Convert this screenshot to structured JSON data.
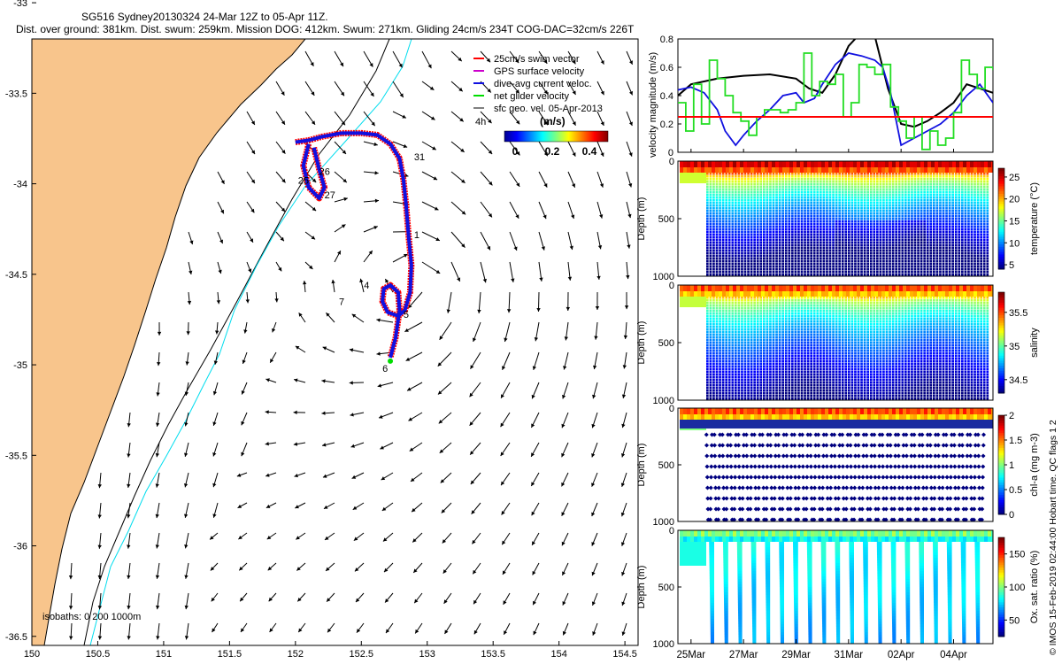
{
  "header": {
    "title_line1": "SG516 Sydney20130324 24-Mar 12Z to 05-Apr 11Z.",
    "title_line2": "Dist. over ground: 381km. Dist. swum: 259km. Mission DOG: 412km. Swum: 271km. Gliding 24cm/s 234T COG-DAC=32cm/s 226T"
  },
  "footer_note": "© IMOS 15-Feb-2019 02:44:00 Hobart time. QC flags 1  2",
  "colors": {
    "land": "#F8C58C",
    "swim_vector": "#FF0000",
    "current": "#1010E0",
    "net_velocity": "#00DD00",
    "isobath_200": "#00DDEE",
    "isobath_1000": "#000000",
    "threshold_line": "#FF0000",
    "gps_surface": "#CC00CC"
  },
  "chart_data": [
    {
      "type": "map",
      "name": "glider track map",
      "xlim": [
        150,
        154.6
      ],
      "ylim": [
        -36.55,
        -33.2
      ],
      "x_ticks": [
        "150",
        "150.5",
        "151",
        "151.5",
        "152",
        "152.5",
        "153",
        "153.5",
        "154",
        "154.5"
      ],
      "y_ticks": [
        "-33",
        "-33.5",
        "-34",
        "-34.5",
        "-35",
        "-35.5",
        "-36",
        "-36.5"
      ],
      "isobaths_note": "isobaths: 0   200  1000m",
      "legend": {
        "items": [
          "25cm/s swim vector",
          "GPS surface velocity",
          "dive-avg current veloc.",
          "net glider velocity",
          "sfc geo. vel. 05-Apr-2013"
        ],
        "extra": "4h"
      },
      "colorbar": {
        "label": "(m/s)",
        "ticks": [
          "0",
          "0.2",
          "0.4"
        ],
        "range": [
          0,
          0.5
        ]
      },
      "day_labels": [
        {
          "text": "25",
          "lon": 152.02,
          "lat": -34.0
        },
        {
          "text": "26",
          "lon": 152.18,
          "lat": -33.95
        },
        {
          "text": "27",
          "lon": 152.22,
          "lat": -34.08
        },
        {
          "text": "31",
          "lon": 152.9,
          "lat": -33.87
        },
        {
          "text": "1",
          "lon": 152.9,
          "lat": -34.3
        },
        {
          "text": "4",
          "lon": 152.52,
          "lat": -34.58
        },
        {
          "text": "7",
          "lon": 152.33,
          "lat": -34.67
        },
        {
          "text": "5",
          "lon": 152.82,
          "lat": -34.74
        },
        {
          "text": "6",
          "lon": 152.66,
          "lat": -35.04
        }
      ],
      "track": [
        [
          152.0,
          -33.77
        ],
        [
          152.1,
          -33.76
        ],
        [
          152.2,
          -33.74
        ],
        [
          152.35,
          -33.72
        ],
        [
          152.5,
          -33.72
        ],
        [
          152.62,
          -33.73
        ],
        [
          152.72,
          -33.78
        ],
        [
          152.79,
          -33.86
        ],
        [
          152.82,
          -33.98
        ],
        [
          152.84,
          -34.12
        ],
        [
          152.86,
          -34.3
        ],
        [
          152.88,
          -34.45
        ],
        [
          152.87,
          -34.6
        ],
        [
          152.83,
          -34.7
        ],
        [
          152.78,
          -34.73
        ],
        [
          152.7,
          -34.71
        ],
        [
          152.66,
          -34.65
        ],
        [
          152.67,
          -34.58
        ],
        [
          152.72,
          -34.56
        ],
        [
          152.78,
          -34.6
        ],
        [
          152.79,
          -34.7
        ],
        [
          152.76,
          -34.85
        ],
        [
          152.72,
          -34.96
        ]
      ],
      "track_loop": [
        [
          152.1,
          -33.78
        ],
        [
          152.06,
          -33.9
        ],
        [
          152.1,
          -34.02
        ],
        [
          152.18,
          -34.08
        ],
        [
          152.22,
          -34.02
        ],
        [
          152.18,
          -33.92
        ],
        [
          152.14,
          -33.8
        ]
      ]
    },
    {
      "type": "line",
      "name": "velocity magnitude",
      "ylabel": "velocity magnitude (m/s)",
      "ylim": [
        0,
        0.8
      ],
      "y_ticks": [
        "0",
        "0.2",
        "0.4",
        "0.6",
        "0.8"
      ],
      "threshold": 0.25,
      "t_range": [
        24.5,
        36.5
      ],
      "series": [
        {
          "name": "sfc geostrophic",
          "color": "#000000",
          "t": [
            24.5,
            25.0,
            26.0,
            27.0,
            28.0,
            29.0,
            29.5,
            30.0,
            30.5,
            31.0,
            31.5,
            32.0,
            32.5,
            33.0,
            33.5,
            34.0,
            34.5,
            35.0,
            35.5,
            36.0,
            36.5
          ],
          "v": [
            0.4,
            0.48,
            0.52,
            0.54,
            0.55,
            0.52,
            0.45,
            0.42,
            0.55,
            0.75,
            0.85,
            0.82,
            0.45,
            0.2,
            0.18,
            0.22,
            0.28,
            0.35,
            0.48,
            0.45,
            0.42
          ]
        },
        {
          "name": "dive-avg current",
          "color": "#1010E0",
          "t": [
            24.5,
            25.0,
            25.5,
            26.0,
            26.3,
            26.7,
            27.0,
            27.5,
            28.0,
            28.5,
            29.0,
            29.3,
            29.7,
            30.0,
            30.5,
            31.0,
            31.5,
            32.0,
            32.3,
            32.6,
            33.0,
            33.5,
            34.0,
            34.5,
            35.0,
            35.5,
            36.0,
            36.5
          ],
          "v": [
            0.44,
            0.46,
            0.42,
            0.3,
            0.15,
            0.05,
            0.12,
            0.22,
            0.3,
            0.4,
            0.42,
            0.35,
            0.38,
            0.48,
            0.62,
            0.7,
            0.68,
            0.65,
            0.6,
            0.42,
            0.05,
            0.1,
            0.15,
            0.2,
            0.28,
            0.4,
            0.48,
            0.35
          ]
        },
        {
          "name": "net glider velocity",
          "color": "#22DD22",
          "t": [
            24.5,
            24.8,
            25.1,
            25.4,
            25.7,
            26.0,
            26.3,
            26.6,
            26.9,
            27.2,
            27.5,
            27.8,
            28.1,
            28.4,
            28.7,
            29.0,
            29.3,
            29.6,
            29.9,
            30.2,
            30.5,
            30.8,
            31.1,
            31.4,
            31.7,
            32.0,
            32.3,
            32.6,
            32.9,
            33.2,
            33.5,
            33.8,
            34.1,
            34.4,
            34.7,
            35.0,
            35.3,
            35.6,
            35.9,
            36.2,
            36.5
          ],
          "v": [
            0.35,
            0.15,
            0.48,
            0.2,
            0.65,
            0.52,
            0.4,
            0.28,
            0.22,
            0.12,
            0.25,
            0.3,
            0.3,
            0.28,
            0.3,
            0.35,
            0.7,
            0.4,
            0.5,
            0.48,
            0.55,
            0.25,
            0.35,
            0.62,
            0.6,
            0.55,
            0.62,
            0.32,
            0.22,
            0.1,
            0.25,
            0.02,
            0.15,
            0.05,
            0.1,
            0.28,
            0.65,
            0.55,
            0.45,
            0.6,
            0.58
          ]
        }
      ]
    },
    {
      "type": "heatmap",
      "name": "temperature",
      "label": "temperature (°C)",
      "ylabel": "Depth (m)",
      "y_ticks": [
        "0",
        "500",
        "1000"
      ],
      "colorbar_ticks": [
        "5",
        "10",
        "15",
        "20",
        "25"
      ],
      "crange": [
        4,
        27
      ],
      "surface_value": 25,
      "deep_value": 5
    },
    {
      "type": "heatmap",
      "name": "salinity",
      "label": "salinity",
      "ylabel": "Depth (m)",
      "y_ticks": [
        "0",
        "500",
        "1000"
      ],
      "colorbar_ticks": [
        "34.5",
        "35",
        "35.5"
      ],
      "crange": [
        34.3,
        35.8
      ],
      "surface_value": 35.5,
      "deep_value": 34.5
    },
    {
      "type": "heatmap",
      "name": "chlorophyll",
      "label": "chl-a (mg m-3)",
      "ylabel": "Depth (m)",
      "y_ticks": [
        "0",
        "500",
        "1000"
      ],
      "colorbar_ticks": [
        "0",
        "0.5",
        "1",
        "1.5",
        "2"
      ],
      "crange": [
        0,
        2
      ],
      "surface_value": 1.6,
      "deep_value": 0
    },
    {
      "type": "heatmap",
      "name": "oxygen",
      "label": "Ox. sat. ratio (%)",
      "ylabel": "Depth (m)",
      "y_ticks": [
        "0",
        "500",
        "1000"
      ],
      "colorbar_ticks": [
        "50",
        "100",
        "150"
      ],
      "crange": [
        25,
        175
      ],
      "surface_value": 100,
      "deep_value": 80
    },
    {
      "type": "axis",
      "name": "time axis",
      "x_ticks": [
        "25Mar",
        "27Mar",
        "29Mar",
        "31Mar",
        "02Apr",
        "04Apr"
      ],
      "tick_days": [
        25,
        27,
        29,
        31,
        33,
        35
      ],
      "t_range": [
        24.5,
        36.5
      ]
    }
  ]
}
